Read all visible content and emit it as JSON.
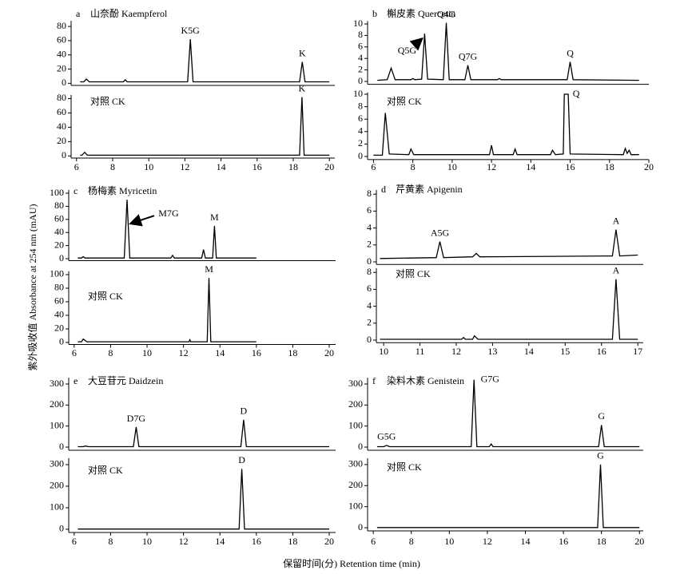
{
  "x_label": "保留时间(分) Retention time (min)",
  "y_label": "紫外吸收值 Absorbance at 254 nm (mAU)",
  "chart_data": [
    {
      "type": "line",
      "panel": "a",
      "title": "山奈酚 Kaempferol",
      "xlim": [
        5.7,
        20.3
      ],
      "ylim": [
        -3,
        88
      ],
      "yticks": [
        0,
        20,
        40,
        60,
        80
      ],
      "x": [
        6.2,
        6.4,
        6.55,
        6.7,
        8.6,
        8.7,
        8.8,
        12.15,
        12.3,
        12.45,
        18.35,
        18.5,
        18.65,
        20
      ],
      "values": [
        2,
        2,
        6,
        2,
        2,
        5,
        2,
        2,
        62,
        2,
        2,
        30,
        2,
        2
      ],
      "annotations": [
        {
          "text": "K5G",
          "x": 12.3
        },
        {
          "text": "K",
          "x": 18.5
        }
      ]
    },
    {
      "type": "line",
      "title": "对照 CK",
      "xlim": [
        5.7,
        20.3
      ],
      "ylim": [
        -3,
        85
      ],
      "yticks": [
        0,
        20,
        40,
        60,
        80
      ],
      "xticks": [
        6,
        8,
        10,
        12,
        14,
        16,
        18,
        20
      ],
      "x": [
        6.2,
        6.3,
        6.45,
        6.6,
        18.35,
        18.48,
        18.6,
        20
      ],
      "values": [
        1,
        1,
        5,
        1,
        1,
        82,
        1,
        1
      ],
      "annotations": [
        {
          "text": "K",
          "x": 18.48
        }
      ]
    },
    {
      "type": "line",
      "panel": "b",
      "title": "槲皮素 Quercetin",
      "xlim": [
        5.7,
        20
      ],
      "ylim": [
        -0.5,
        10.5
      ],
      "yticks": [
        0,
        2,
        4,
        6,
        8,
        10
      ],
      "x": [
        6.2,
        6.7,
        6.9,
        7.1,
        7.9,
        8.0,
        8.1,
        8.45,
        8.6,
        8.75,
        9.55,
        9.7,
        9.85,
        10.65,
        10.8,
        10.95,
        12.3,
        12.4,
        12.5,
        15.85,
        16.0,
        16.15,
        19.5
      ],
      "values": [
        0.2,
        0.3,
        2.3,
        0.3,
        0.3,
        0.5,
        0.3,
        0.4,
        8.3,
        0.4,
        0.3,
        10.2,
        0.3,
        0.3,
        2.8,
        0.3,
        0.3,
        0.5,
        0.3,
        0.3,
        3.4,
        0.3,
        0.2
      ],
      "annotations": [
        {
          "text": "Q5G",
          "x": 8.6
        },
        {
          "text": "Q4G",
          "x": 9.7
        },
        {
          "text": "Q7G",
          "x": 10.8
        },
        {
          "text": "Q",
          "x": 16.0
        }
      ]
    },
    {
      "type": "line",
      "title": "对照 CK",
      "xlim": [
        5.7,
        20
      ],
      "ylim": [
        -0.5,
        10.3
      ],
      "yticks": [
        0,
        2,
        4,
        6,
        8,
        10
      ],
      "xticks": [
        6,
        8,
        10,
        12,
        14,
        16,
        18,
        20
      ],
      "x": [
        6,
        6.45,
        6.6,
        6.8,
        7.8,
        7.9,
        8.05,
        11.9,
        12.0,
        12.1,
        13.1,
        13.2,
        13.3,
        15.0,
        15.1,
        15.25,
        15.65,
        15.7,
        15.9,
        16.0,
        18.7,
        18.8,
        18.9,
        19.0,
        19.1,
        19.5
      ],
      "values": [
        0.2,
        0.2,
        7,
        0.4,
        0.3,
        1.2,
        0.3,
        0.3,
        1.8,
        0.3,
        0.3,
        1.2,
        0.3,
        0.3,
        1.0,
        0.3,
        0.4,
        10,
        10,
        0.4,
        0.3,
        1.3,
        0.5,
        1.0,
        0.3,
        0.3
      ],
      "annotations": [
        {
          "text": "Q",
          "x": 15.9
        }
      ]
    },
    {
      "type": "line",
      "panel": "c",
      "title": "杨梅素 Myricetin",
      "xlim": [
        5.7,
        20.35
      ],
      "ylim": [
        -3,
        105
      ],
      "yticks": [
        0,
        20,
        40,
        60,
        80,
        100
      ],
      "x": [
        6.2,
        6.4,
        6.5,
        6.6,
        8.75,
        8.9,
        9.05,
        11.3,
        11.4,
        11.5,
        13.0,
        13.1,
        13.2,
        13.6,
        13.7,
        13.8,
        16
      ],
      "values": [
        1,
        1,
        3,
        1,
        1,
        90,
        1,
        1,
        5,
        1,
        1,
        14,
        1,
        1,
        50,
        1,
        1
      ],
      "annotations": [
        {
          "text": "M7G",
          "x": 8.9
        },
        {
          "text": "M",
          "x": 13.7
        }
      ]
    },
    {
      "type": "line",
      "title": "对照 CK",
      "xlim": [
        5.7,
        20.35
      ],
      "ylim": [
        -3,
        105
      ],
      "yticks": [
        0,
        20,
        40,
        60,
        80,
        100
      ],
      "xticks": [
        6,
        8,
        10,
        12,
        14,
        16,
        18,
        20
      ],
      "x": [
        6.2,
        6.4,
        6.5,
        6.7,
        12.3,
        12.35,
        12.4,
        13.3,
        13.4,
        13.5,
        16
      ],
      "values": [
        1,
        1,
        5,
        1,
        1,
        4,
        1,
        1,
        95,
        1,
        1
      ],
      "annotations": [
        {
          "text": "M",
          "x": 13.4
        }
      ]
    },
    {
      "type": "line",
      "panel": "d",
      "title": "芹黄素 Apigenin",
      "xlim": [
        9.8,
        17.15
      ],
      "ylim": [
        -0.3,
        8.5
      ],
      "yticks": [
        0,
        2,
        4,
        6,
        8
      ],
      "x": [
        9.9,
        11.45,
        11.55,
        11.65,
        12.45,
        12.55,
        12.65,
        16.3,
        16.4,
        16.5,
        17
      ],
      "values": [
        0.4,
        0.5,
        2.4,
        0.5,
        0.6,
        1.0,
        0.6,
        0.7,
        3.8,
        0.7,
        0.8
      ],
      "annotations": [
        {
          "text": "A5G",
          "x": 11.55
        },
        {
          "text": "A",
          "x": 16.4
        }
      ]
    },
    {
      "type": "line",
      "title": "对照 CK",
      "xlim": [
        9.8,
        17.15
      ],
      "ylim": [
        -0.3,
        8.5
      ],
      "yticks": [
        0,
        2,
        4,
        6,
        8
      ],
      "xticks": [
        10,
        11,
        12,
        13,
        14,
        15,
        16,
        17
      ],
      "x": [
        9.9,
        12.15,
        12.2,
        12.25,
        12.45,
        12.5,
        12.6,
        16.3,
        16.4,
        16.5,
        17
      ],
      "values": [
        0.1,
        0.1,
        0.3,
        0.1,
        0.1,
        0.5,
        0.1,
        0.1,
        7.2,
        0.1,
        0.1
      ],
      "annotations": [
        {
          "text": "A",
          "x": 16.4
        }
      ]
    },
    {
      "type": "line",
      "panel": "e",
      "title": "大豆苷元 Daidzein",
      "xlim": [
        5.7,
        20.35
      ],
      "ylim": [
        -15,
        330
      ],
      "yticks": [
        0,
        100,
        200,
        300
      ],
      "x": [
        6.2,
        6.5,
        6.6,
        6.8,
        9.25,
        9.4,
        9.55,
        15.15,
        15.3,
        15.45,
        20
      ],
      "values": [
        2,
        2,
        5,
        2,
        2,
        95,
        2,
        2,
        130,
        2,
        2
      ],
      "annotations": [
        {
          "text": "D7G",
          "x": 9.4
        },
        {
          "text": "D",
          "x": 15.3
        }
      ]
    },
    {
      "type": "line",
      "title": "对照 CK",
      "xlim": [
        5.7,
        20.35
      ],
      "ylim": [
        -15,
        330
      ],
      "yticks": [
        0,
        100,
        200,
        300
      ],
      "xticks": [
        6,
        8,
        10,
        12,
        14,
        16,
        18,
        20
      ],
      "x": [
        6.2,
        15.05,
        15.2,
        15.35,
        20
      ],
      "values": [
        1,
        1,
        280,
        1,
        1
      ],
      "annotations": [
        {
          "text": "D",
          "x": 15.2
        }
      ]
    },
    {
      "type": "line",
      "panel": "f",
      "title": "染料木素 Genistein",
      "xlim": [
        5.7,
        20.2
      ],
      "ylim": [
        -15,
        330
      ],
      "yticks": [
        0,
        100,
        200,
        300
      ],
      "x": [
        6.2,
        6.55,
        6.7,
        6.85,
        11.15,
        11.3,
        11.45,
        12.1,
        12.2,
        12.3,
        17.85,
        18.0,
        18.15,
        20
      ],
      "values": [
        2,
        2,
        8,
        2,
        2,
        320,
        2,
        2,
        15,
        2,
        2,
        105,
        2,
        2
      ],
      "annotations": [
        {
          "text": "G5G",
          "x": 6.7
        },
        {
          "text": "G7G",
          "x": 11.3
        },
        {
          "text": "G",
          "x": 18.0
        }
      ]
    },
    {
      "type": "line",
      "title": "对照 CK",
      "xlim": [
        5.7,
        20.2
      ],
      "ylim": [
        -15,
        330
      ],
      "yticks": [
        0,
        100,
        200,
        300
      ],
      "xticks": [
        6,
        8,
        10,
        12,
        14,
        16,
        18,
        20
      ],
      "x": [
        6.2,
        17.8,
        17.95,
        18.1,
        20
      ],
      "values": [
        1,
        1,
        300,
        1,
        1
      ],
      "annotations": [
        {
          "text": "G",
          "x": 17.95
        }
      ]
    }
  ]
}
